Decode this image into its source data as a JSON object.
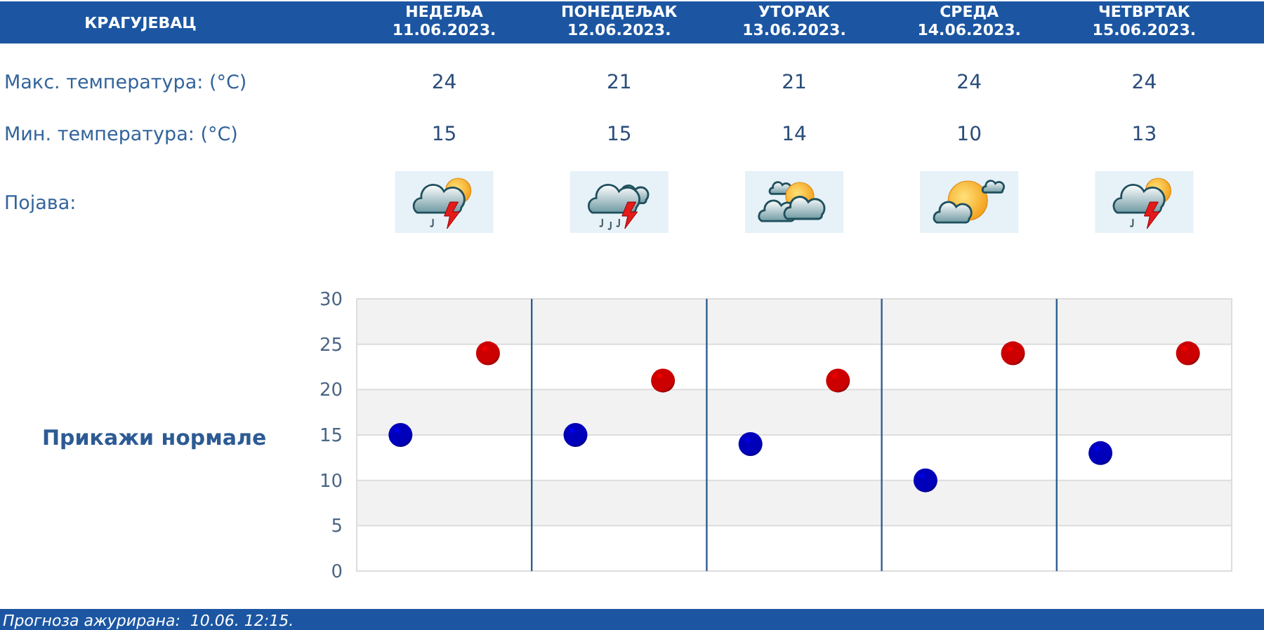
{
  "chart_data": [
    {
      "type": "other",
      "title": "КРАГУЈЕВАЦ",
      "categories": [
        "НЕДЕЉА 11.06.2023.",
        "ПОНЕДЕЉАК 12.06.2023.",
        "УТОРАК 13.06.2023.",
        "СРЕДА 14.06.2023.",
        "ЧЕТВРТАК 15.06.2023."
      ],
      "y_categories": [
        "Макс. температура: (°C)",
        "Мин. температура: (°C)",
        "Појава:"
      ]
    },
    {
      "type": "scatter",
      "categories": [
        null,
        null,
        null,
        null,
        null
      ],
      "series": [
        {
          "color": "#cc0000",
          "values": [
            24,
            21,
            21,
            24,
            24
          ]
        },
        {
          "color": "#0000bb",
          "values": [
            15,
            15,
            14,
            10,
            13
          ]
        }
      ],
      "ylim": [
        0,
        30
      ],
      "yticks": [
        0,
        5,
        10,
        15,
        20,
        25,
        30
      ],
      "grid": true,
      "marker": "circle",
      "tick_labels": "y",
      "data_labels": true,
      "annotations": [
        "Прикажи нормале",
        "Прогноза ажурирана:  10.06. 12:15."
      ]
    }
  ]
}
